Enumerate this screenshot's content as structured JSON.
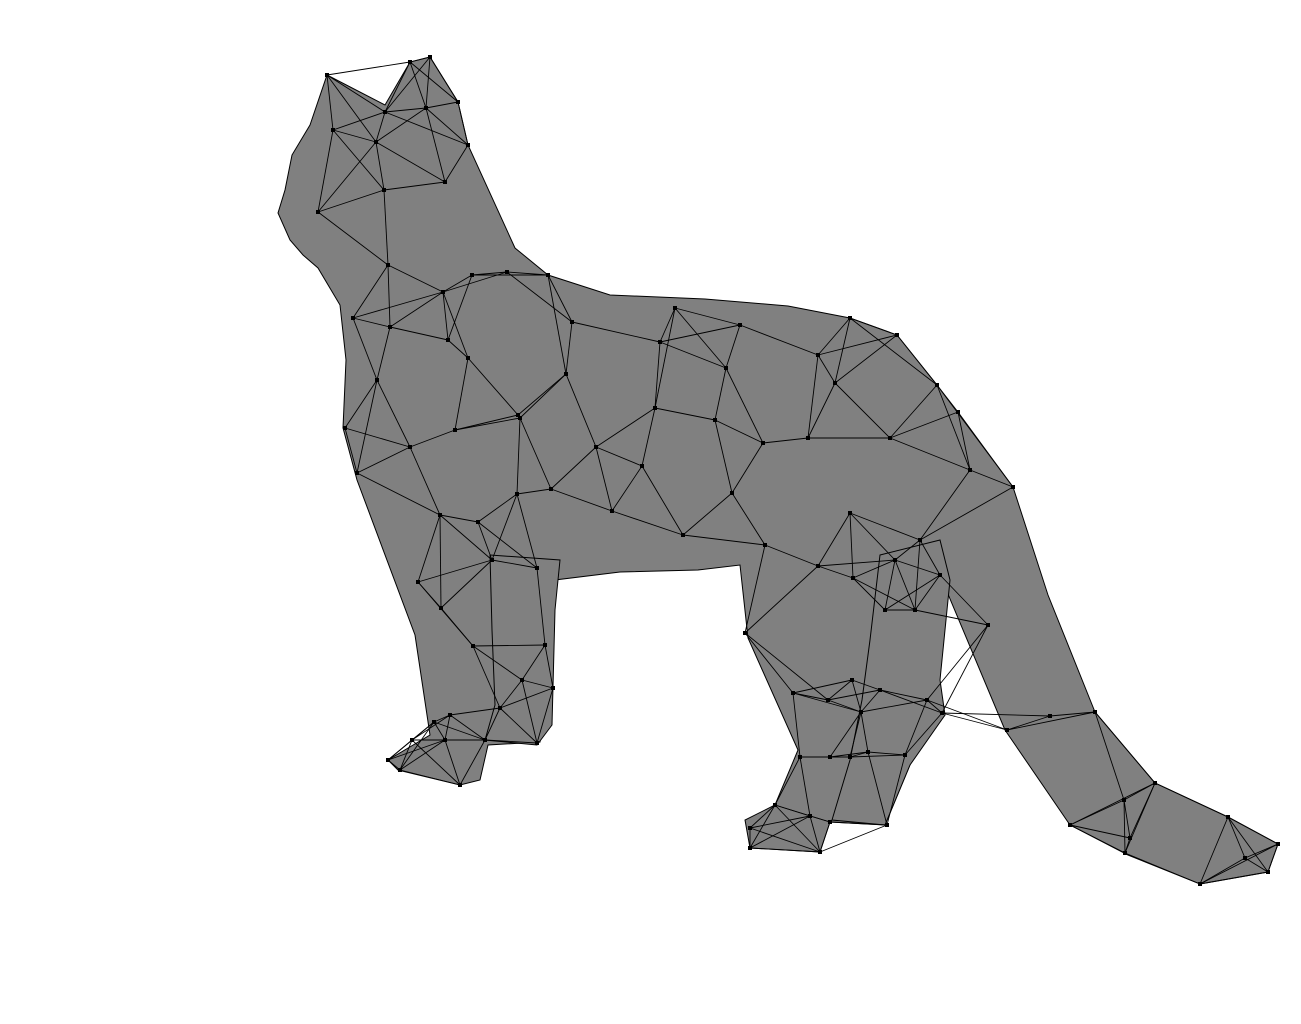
{
  "scene": {
    "subject": "cat",
    "render_style": "triangulated-wireframe-mesh",
    "background_color": "#ffffff",
    "fill_color": "#808080",
    "edge_color": "#000000",
    "vertex_color": "#000000"
  }
}
